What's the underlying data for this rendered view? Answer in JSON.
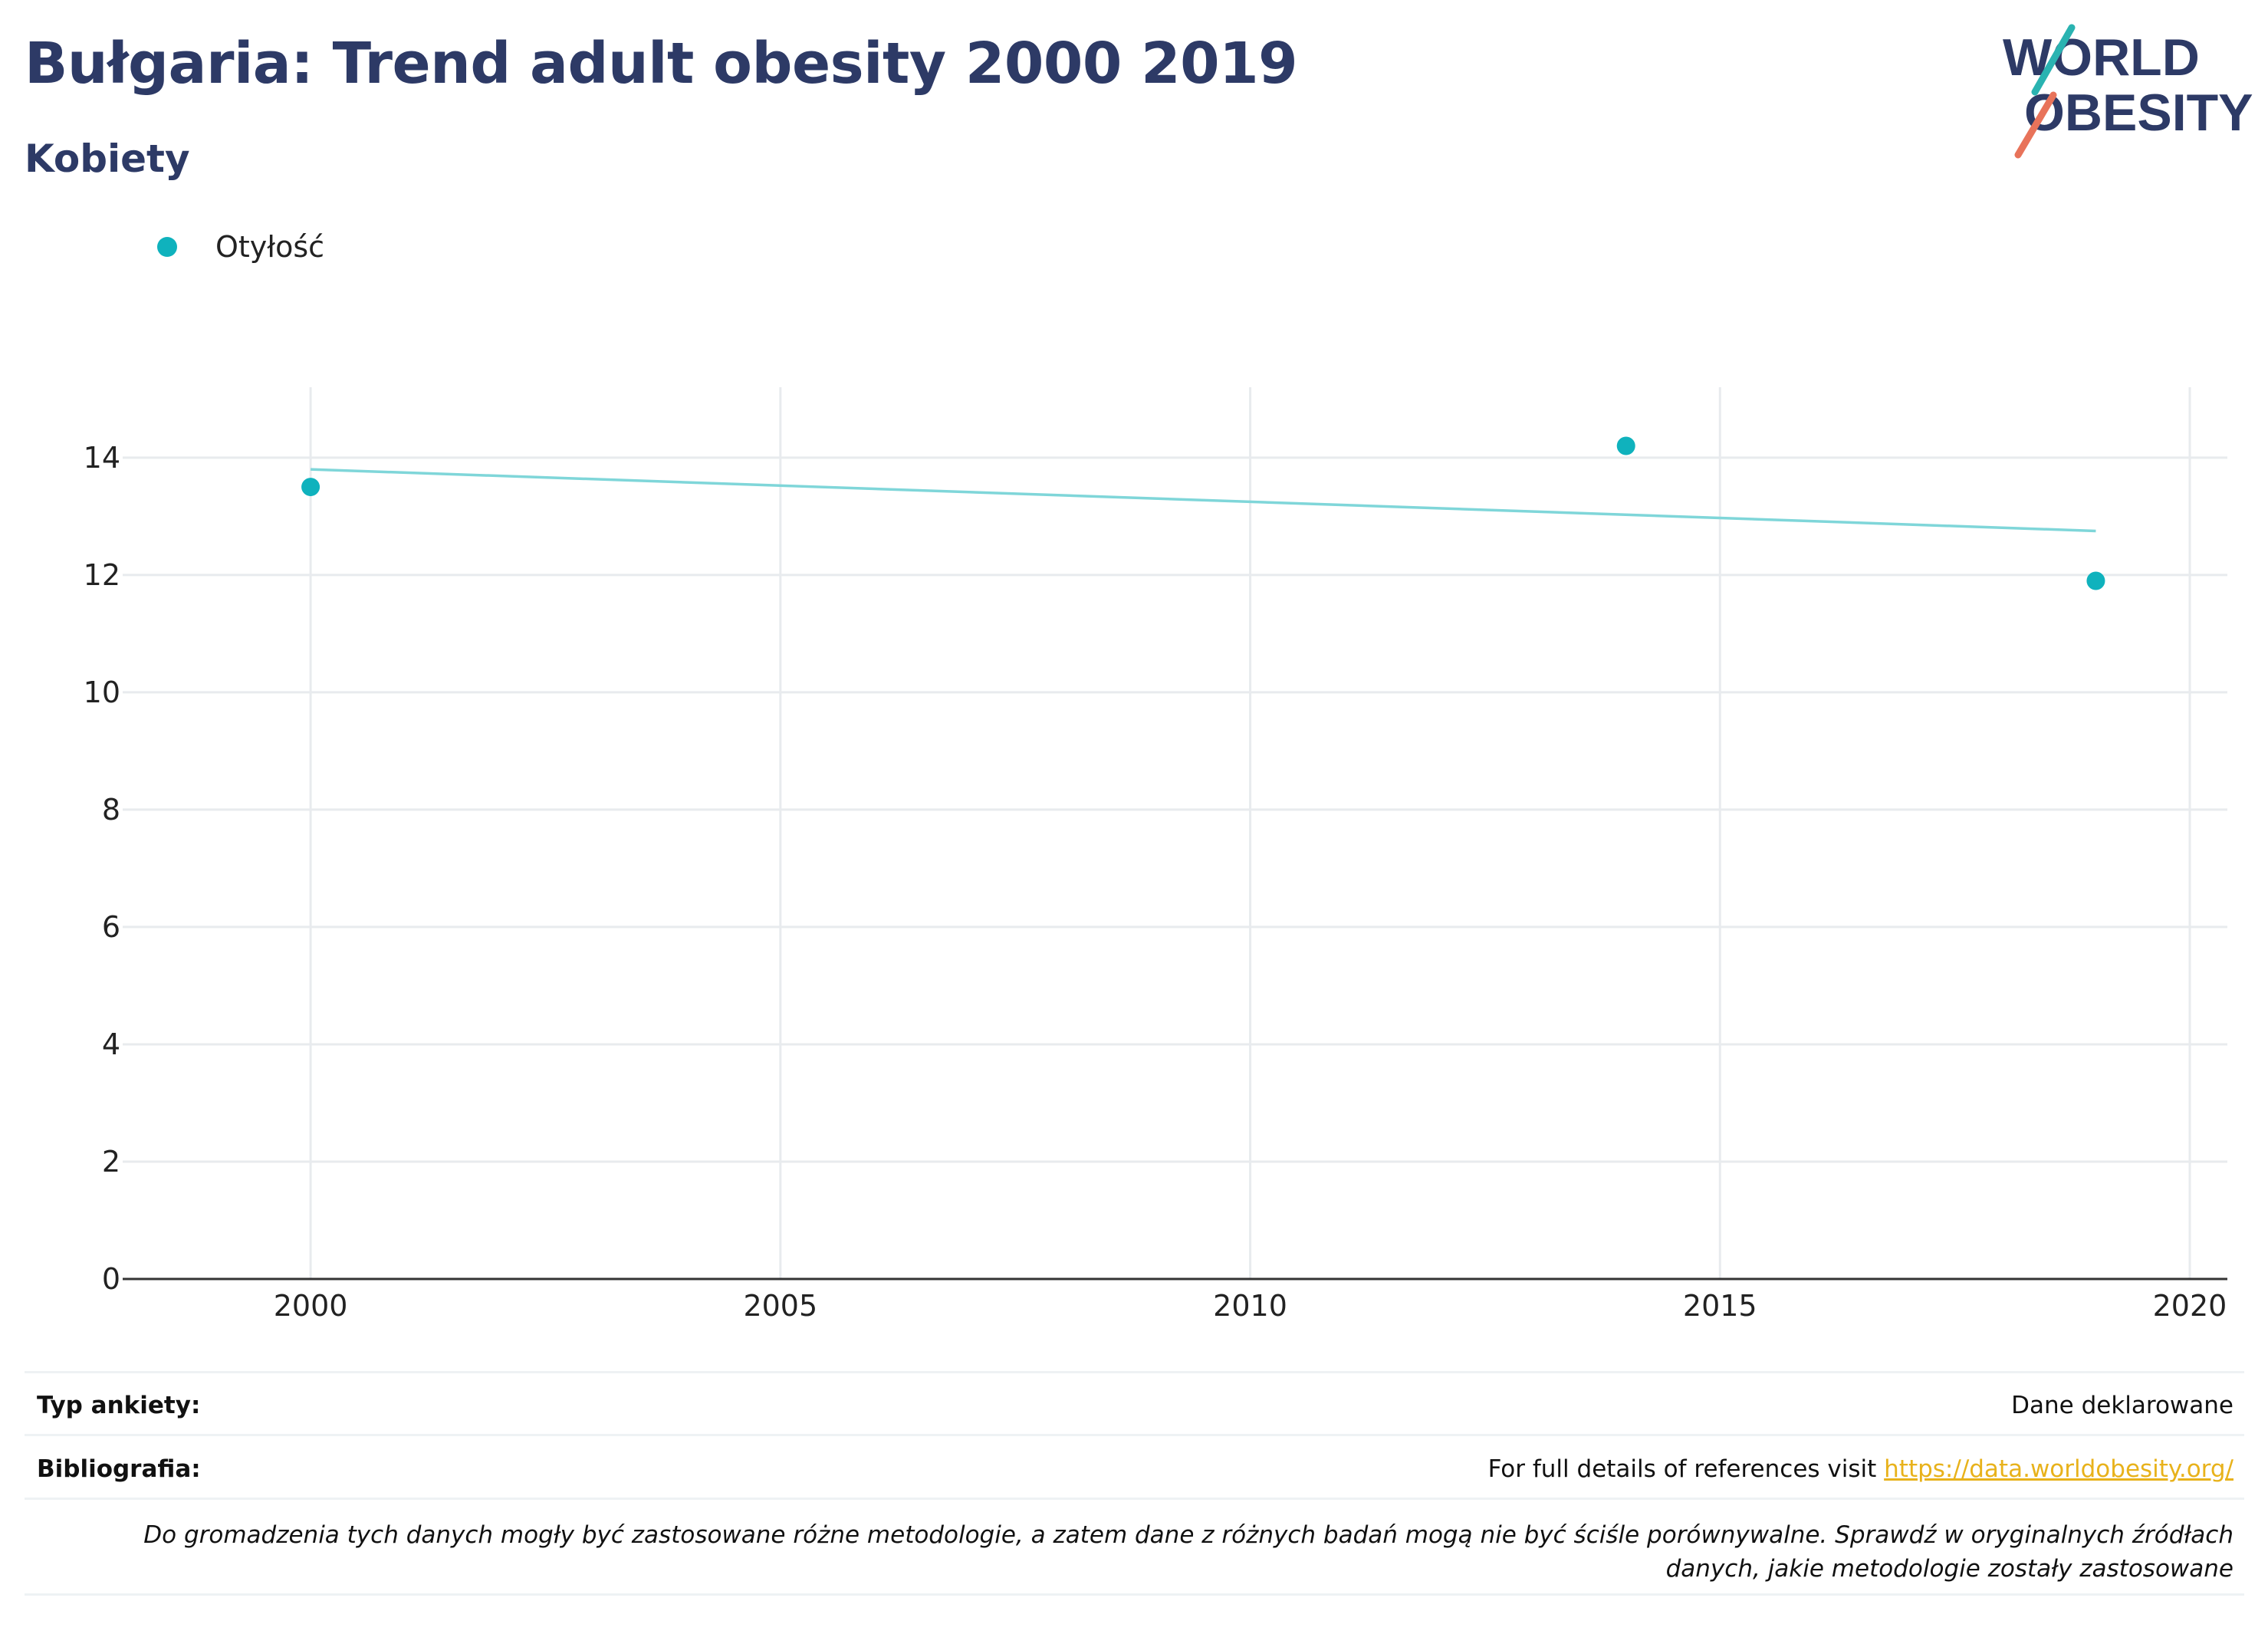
{
  "header": {
    "title": "Bułgaria: Trend adult obesity 2000 2019",
    "subtitle": "Kobiety"
  },
  "logo": {
    "line1": "WORLD",
    "line2": "OBESITY"
  },
  "legend": {
    "label": "Otyłość"
  },
  "colors": {
    "title": "#2d3a66",
    "series": "#0fb2bd",
    "trendline": "#7fd6d9",
    "grid": "#e8ebee",
    "link": "#e8b21b",
    "logo_teal": "#2ab3b1",
    "logo_coral": "#e8735a"
  },
  "chart_data": {
    "type": "scatter",
    "title": "Bułgaria: Trend adult obesity 2000 2019",
    "subtitle": "Kobiety",
    "xlabel": "",
    "ylabel": "",
    "xlim": [
      1998,
      2020.4
    ],
    "ylim": [
      0,
      15.2
    ],
    "x_ticks": [
      2000,
      2005,
      2010,
      2015,
      2020
    ],
    "y_ticks": [
      0,
      2,
      4,
      6,
      8,
      10,
      12,
      14
    ],
    "grid": true,
    "legend_position": "top-left",
    "series": [
      {
        "name": "Otyłość",
        "x": [
          2000,
          2014,
          2019
        ],
        "y": [
          13.5,
          14.2,
          11.9
        ]
      }
    ],
    "trendline": {
      "x": [
        2000,
        2019
      ],
      "y": [
        13.8,
        12.75
      ]
    }
  },
  "footer": {
    "survey_label": "Typ ankiety:",
    "survey_value": "Dane deklarowane",
    "biblio_label": "Bibliografia:",
    "biblio_text": "For full details of references visit ",
    "biblio_link": "https://data.worldobesity.org/",
    "note": "Do gromadzenia tych danych mogły być zastosowane różne metodologie, a zatem dane z różnych badań mogą nie być ściśle porównywalne. Sprawdź w oryginalnych źródłach danych, jakie metodologie zostały zastosowane"
  }
}
